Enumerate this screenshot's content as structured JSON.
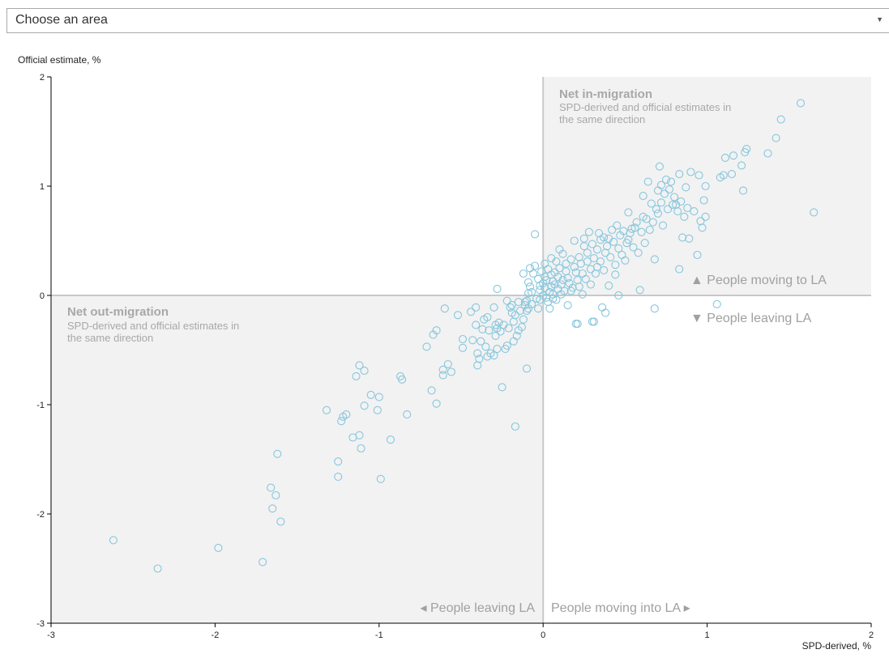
{
  "selector": {
    "value": "Choose an area"
  },
  "chart_data": {
    "type": "scatter",
    "xlabel": "SPD-derived, %",
    "ylabel": "Official estimate, %",
    "xlim": [
      -3,
      2
    ],
    "ylim": [
      -3,
      2
    ],
    "x_ticks": [
      "-3",
      "-2",
      "-1",
      "0",
      "1",
      "2"
    ],
    "y_ticks": [
      "2",
      "1",
      "0",
      "-1",
      "-2",
      "-3"
    ],
    "quadrants": {
      "in": {
        "title": "Net in-migration",
        "line1": "SPD-derived and official estimates in",
        "line2": "the same direction"
      },
      "out": {
        "title": "Net out-migration",
        "line1": "SPD-derived and official estimates in",
        "line2": "the same direction"
      }
    },
    "direction_labels": {
      "up": "▲ People moving to LA",
      "down": "▼ People leaving LA",
      "left": "◂ People leaving LA",
      "right": "People moving into LA ▸"
    },
    "points": [
      [
        -2.62,
        -2.24
      ],
      [
        -2.35,
        -2.5
      ],
      [
        -1.98,
        -2.31
      ],
      [
        -1.71,
        -2.44
      ],
      [
        -1.66,
        -1.76
      ],
      [
        -1.65,
        -1.95
      ],
      [
        -1.63,
        -1.83
      ],
      [
        -1.62,
        -1.45
      ],
      [
        -1.6,
        -2.07
      ],
      [
        -1.32,
        -1.05
      ],
      [
        -1.25,
        -1.52
      ],
      [
        -1.25,
        -1.66
      ],
      [
        -1.23,
        -1.15
      ],
      [
        -1.22,
        -1.11
      ],
      [
        -1.2,
        -1.09
      ],
      [
        -1.16,
        -1.3
      ],
      [
        -1.14,
        -0.74
      ],
      [
        -1.12,
        -1.28
      ],
      [
        -1.11,
        -1.4
      ],
      [
        -1.12,
        -0.64
      ],
      [
        -1.09,
        -0.69
      ],
      [
        -1.09,
        -1.01
      ],
      [
        -1.05,
        -0.91
      ],
      [
        -1.01,
        -1.05
      ],
      [
        -1.0,
        -0.93
      ],
      [
        -0.99,
        -1.68
      ],
      [
        -0.93,
        -1.32
      ],
      [
        -0.87,
        -0.74
      ],
      [
        -0.86,
        -0.77
      ],
      [
        -0.83,
        -1.09
      ],
      [
        -0.71,
        -0.47
      ],
      [
        -0.68,
        -0.87
      ],
      [
        -0.67,
        -0.36
      ],
      [
        -0.65,
        -0.32
      ],
      [
        -0.65,
        -0.99
      ],
      [
        -0.61,
        -0.73
      ],
      [
        -0.61,
        -0.68
      ],
      [
        -0.6,
        -0.12
      ],
      [
        -0.58,
        -0.63
      ],
      [
        -0.56,
        -0.7
      ],
      [
        -0.52,
        -0.18
      ],
      [
        -0.49,
        -0.4
      ],
      [
        -0.49,
        -0.48
      ],
      [
        -0.44,
        -0.15
      ],
      [
        -0.43,
        -0.41
      ],
      [
        -0.41,
        -0.11
      ],
      [
        -0.41,
        -0.27
      ],
      [
        -0.4,
        -0.53
      ],
      [
        -0.4,
        -0.64
      ],
      [
        -0.39,
        -0.58
      ],
      [
        -0.38,
        -0.42
      ],
      [
        -0.37,
        -0.31
      ],
      [
        -0.36,
        -0.22
      ],
      [
        -0.35,
        -0.47
      ],
      [
        -0.34,
        -0.56
      ],
      [
        -0.34,
        -0.2
      ],
      [
        -0.33,
        -0.32
      ],
      [
        -0.32,
        -0.53
      ],
      [
        -0.3,
        -0.11
      ],
      [
        -0.3,
        -0.55
      ],
      [
        -0.29,
        -0.27
      ],
      [
        -0.29,
        -0.37
      ],
      [
        -0.28,
        -0.49
      ],
      [
        -0.28,
        0.06
      ],
      [
        -0.28,
        -0.3
      ],
      [
        -0.27,
        -0.25
      ],
      [
        -0.26,
        -0.33
      ],
      [
        -0.25,
        -0.84
      ],
      [
        -0.24,
        -0.27
      ],
      [
        -0.23,
        -0.49
      ],
      [
        -0.22,
        -0.46
      ],
      [
        -0.22,
        -0.05
      ],
      [
        -0.21,
        -0.3
      ],
      [
        -0.2,
        -0.11
      ],
      [
        -0.19,
        -0.09
      ],
      [
        -0.19,
        -0.16
      ],
      [
        -0.18,
        -0.24
      ],
      [
        -0.18,
        -0.42
      ],
      [
        -0.17,
        -0.18
      ],
      [
        -0.17,
        -1.2
      ],
      [
        -0.16,
        -0.37
      ],
      [
        -0.15,
        -0.32
      ],
      [
        -0.15,
        -0.06
      ],
      [
        -0.14,
        -0.14
      ],
      [
        -0.13,
        -0.29
      ],
      [
        -0.12,
        -0.22
      ],
      [
        -0.12,
        0.2
      ],
      [
        -0.11,
        -0.09
      ],
      [
        -0.11,
        -0.06
      ],
      [
        -0.1,
        -0.14
      ],
      [
        -0.1,
        -0.67
      ],
      [
        -0.1,
        -0.05
      ],
      [
        -0.09,
        0.12
      ],
      [
        -0.09,
        -0.12
      ],
      [
        -0.09,
        0.02
      ],
      [
        -0.08,
        0.08
      ],
      [
        -0.08,
        0.25
      ],
      [
        -0.07,
        -0.08
      ],
      [
        -0.07,
        0.03
      ],
      [
        -0.06,
        0.2
      ],
      [
        -0.05,
        0.56
      ],
      [
        -0.05,
        0.27
      ],
      [
        -0.04,
        -0.03
      ],
      [
        -0.03,
        -0.12
      ],
      [
        -0.03,
        0.15
      ],
      [
        -0.02,
        0.09
      ],
      [
        -0.02,
        -0.04
      ],
      [
        -0.02,
        0.05
      ],
      [
        -0.01,
        0.22
      ],
      [
        0.0,
        0.11
      ],
      [
        0.0,
        0.0
      ],
      [
        0.01,
        0.29
      ],
      [
        0.01,
        0.07
      ],
      [
        0.01,
        0.17
      ],
      [
        0.02,
        -0.02
      ],
      [
        0.02,
        0.14
      ],
      [
        0.03,
        -0.06
      ],
      [
        0.03,
        0.24
      ],
      [
        0.04,
        -0.12
      ],
      [
        0.04,
        0.03
      ],
      [
        0.05,
        0.08
      ],
      [
        0.05,
        0.19
      ],
      [
        0.05,
        0.34
      ],
      [
        0.06,
        0.01
      ],
      [
        0.06,
        -0.03
      ],
      [
        0.06,
        0.13
      ],
      [
        0.07,
        0.1
      ],
      [
        0.07,
        0.21
      ],
      [
        0.08,
        -0.04
      ],
      [
        0.08,
        0.31
      ],
      [
        0.09,
        0.06
      ],
      [
        0.09,
        0.17
      ],
      [
        0.1,
        0.42
      ],
      [
        0.1,
        0.25
      ],
      [
        0.11,
        0.01
      ],
      [
        0.11,
        0.1
      ],
      [
        0.12,
        0.38
      ],
      [
        0.12,
        0.14
      ],
      [
        0.13,
        0.04
      ],
      [
        0.14,
        0.29
      ],
      [
        0.14,
        0.22
      ],
      [
        0.15,
        -0.09
      ],
      [
        0.15,
        0.16
      ],
      [
        0.16,
        0.11
      ],
      [
        0.17,
        0.33
      ],
      [
        0.17,
        0.04
      ],
      [
        0.18,
        0.07
      ],
      [
        0.19,
        0.26
      ],
      [
        0.19,
        0.5
      ],
      [
        0.2,
        -0.26
      ],
      [
        0.2,
        0.21
      ],
      [
        0.21,
        0.14
      ],
      [
        0.21,
        -0.26
      ],
      [
        0.22,
        0.08
      ],
      [
        0.22,
        0.35
      ],
      [
        0.23,
        0.29
      ],
      [
        0.24,
        0.01
      ],
      [
        0.24,
        0.2
      ],
      [
        0.25,
        0.52
      ],
      [
        0.25,
        0.45
      ],
      [
        0.26,
        0.15
      ],
      [
        0.27,
        0.31
      ],
      [
        0.27,
        0.39
      ],
      [
        0.28,
        0.58
      ],
      [
        0.29,
        0.24
      ],
      [
        0.29,
        0.1
      ],
      [
        0.3,
        0.47
      ],
      [
        0.3,
        -0.24
      ],
      [
        0.31,
        -0.24
      ],
      [
        0.31,
        0.34
      ],
      [
        0.32,
        0.2
      ],
      [
        0.33,
        0.42
      ],
      [
        0.33,
        0.26
      ],
      [
        0.34,
        0.57
      ],
      [
        0.35,
        0.51
      ],
      [
        0.35,
        0.31
      ],
      [
        0.36,
        -0.11
      ],
      [
        0.37,
        0.53
      ],
      [
        0.37,
        0.23
      ],
      [
        0.38,
        0.39
      ],
      [
        0.38,
        -0.16
      ],
      [
        0.39,
        0.45
      ],
      [
        0.4,
        0.09
      ],
      [
        0.4,
        0.52
      ],
      [
        0.41,
        0.35
      ],
      [
        0.42,
        0.6
      ],
      [
        0.43,
        0.49
      ],
      [
        0.44,
        0.28
      ],
      [
        0.44,
        0.19
      ],
      [
        0.45,
        0.64
      ],
      [
        0.46,
        0.43
      ],
      [
        0.46,
        0.0
      ],
      [
        0.47,
        0.55
      ],
      [
        0.48,
        0.37
      ],
      [
        0.49,
        0.59
      ],
      [
        0.5,
        0.32
      ],
      [
        0.51,
        0.48
      ],
      [
        0.52,
        0.76
      ],
      [
        0.52,
        0.51
      ],
      [
        0.53,
        0.57
      ],
      [
        0.54,
        0.61
      ],
      [
        0.55,
        0.44
      ],
      [
        0.56,
        0.62
      ],
      [
        0.57,
        0.67
      ],
      [
        0.58,
        0.39
      ],
      [
        0.59,
        0.05
      ],
      [
        0.6,
        0.58
      ],
      [
        0.61,
        0.72
      ],
      [
        0.61,
        0.91
      ],
      [
        0.62,
        0.48
      ],
      [
        0.63,
        0.7
      ],
      [
        0.64,
        1.04
      ],
      [
        0.65,
        0.6
      ],
      [
        0.66,
        0.84
      ],
      [
        0.67,
        0.67
      ],
      [
        0.68,
        -0.12
      ],
      [
        0.68,
        0.33
      ],
      [
        0.69,
        0.79
      ],
      [
        0.7,
        0.96
      ],
      [
        0.7,
        0.75
      ],
      [
        0.71,
        1.18
      ],
      [
        0.72,
        1.01
      ],
      [
        0.72,
        0.85
      ],
      [
        0.73,
        0.64
      ],
      [
        0.74,
        0.93
      ],
      [
        0.75,
        1.06
      ],
      [
        0.76,
        0.79
      ],
      [
        0.77,
        0.97
      ],
      [
        0.78,
        1.04
      ],
      [
        0.79,
        0.83
      ],
      [
        0.8,
        0.9
      ],
      [
        0.81,
        0.83
      ],
      [
        0.82,
        0.77
      ],
      [
        0.83,
        0.24
      ],
      [
        0.83,
        1.11
      ],
      [
        0.84,
        0.86
      ],
      [
        0.85,
        0.53
      ],
      [
        0.86,
        0.72
      ],
      [
        0.87,
        0.99
      ],
      [
        0.88,
        0.8
      ],
      [
        0.89,
        0.52
      ],
      [
        0.9,
        1.13
      ],
      [
        0.92,
        0.77
      ],
      [
        0.94,
        0.37
      ],
      [
        0.95,
        1.1
      ],
      [
        0.96,
        0.68
      ],
      [
        0.97,
        0.62
      ],
      [
        0.98,
        0.87
      ],
      [
        0.99,
        0.72
      ],
      [
        0.99,
        1.0
      ],
      [
        1.06,
        -0.08
      ],
      [
        1.08,
        1.08
      ],
      [
        1.1,
        1.1
      ],
      [
        1.11,
        1.26
      ],
      [
        1.15,
        1.11
      ],
      [
        1.16,
        1.28
      ],
      [
        1.21,
        1.19
      ],
      [
        1.22,
        0.96
      ],
      [
        1.23,
        1.31
      ],
      [
        1.24,
        1.34
      ],
      [
        1.37,
        1.3
      ],
      [
        1.42,
        1.44
      ],
      [
        1.45,
        1.61
      ],
      [
        1.57,
        1.76
      ],
      [
        1.65,
        0.76
      ]
    ]
  }
}
